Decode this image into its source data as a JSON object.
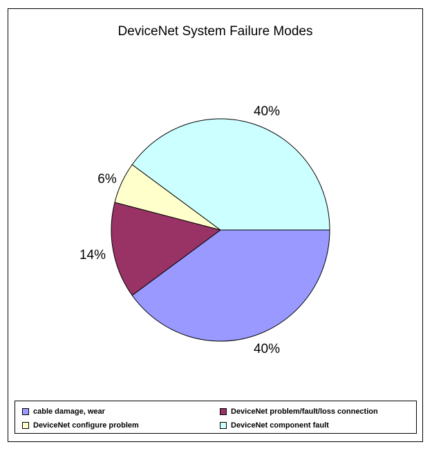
{
  "chart_data": {
    "type": "pie",
    "title": "DeviceNet System Failure Modes",
    "slices": [
      {
        "name": "cable damage, wear",
        "value": 40,
        "label": "40%",
        "color": "#9999ff"
      },
      {
        "name": "DeviceNet problem/fault/loss connection",
        "value": 14,
        "label": "14%",
        "color": "#993366"
      },
      {
        "name": "DeviceNet configure problem",
        "value": 6,
        "label": "6%",
        "color": "#ffffcc"
      },
      {
        "name": "DeviceNet component fault",
        "value": 40,
        "label": "40%",
        "color": "#ccffff"
      }
    ],
    "legend_placement": "bottom"
  }
}
